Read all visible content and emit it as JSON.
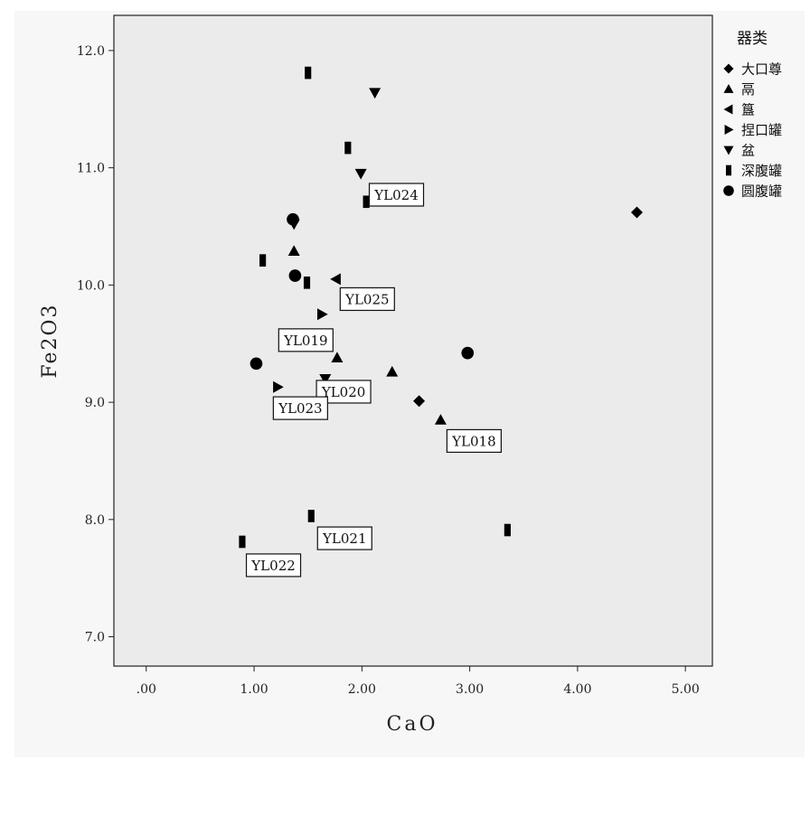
{
  "chart_data": {
    "type": "scatter",
    "xlabel": "CaO",
    "ylabel": "Fe2O3",
    "xlim": [
      -0.3,
      5.25
    ],
    "ylim": [
      6.75,
      12.3
    ],
    "x_ticks": [
      0,
      1,
      2,
      3,
      4,
      5
    ],
    "x_tick_labels": [
      ".00",
      "1.00",
      "2.00",
      "3.00",
      "4.00",
      "5.00"
    ],
    "y_ticks": [
      7,
      8,
      9,
      10,
      11,
      12
    ],
    "y_tick_labels": [
      "7.0",
      "8.0",
      "9.0",
      "10.0",
      "11.0",
      "12.0"
    ],
    "grid": false,
    "legend": {
      "title": "器类",
      "position": "right"
    },
    "series": [
      {
        "name": "大口尊",
        "marker": "diamond",
        "points": [
          [
            4.55,
            10.62
          ],
          [
            2.53,
            9.01
          ]
        ]
      },
      {
        "name": "鬲",
        "marker": "triangle-up",
        "points": [
          [
            1.37,
            10.29
          ],
          [
            1.77,
            9.38
          ],
          [
            2.28,
            9.26
          ],
          [
            2.73,
            8.85
          ]
        ]
      },
      {
        "name": "簋",
        "marker": "triangle-left",
        "points": [
          [
            1.76,
            10.05
          ]
        ]
      },
      {
        "name": "捏口罐",
        "marker": "triangle-right",
        "points": [
          [
            1.63,
            9.75
          ],
          [
            1.22,
            9.13
          ]
        ]
      },
      {
        "name": "盆",
        "marker": "triangle-down",
        "points": [
          [
            2.12,
            11.64
          ],
          [
            1.99,
            10.95
          ],
          [
            1.37,
            10.52
          ],
          [
            1.66,
            9.2
          ]
        ]
      },
      {
        "name": "深腹罐",
        "marker": "square",
        "points": [
          [
            1.5,
            11.81
          ],
          [
            1.87,
            11.17
          ],
          [
            2.04,
            10.71
          ],
          [
            1.08,
            10.21
          ],
          [
            1.49,
            10.02
          ],
          [
            1.53,
            8.03
          ],
          [
            3.35,
            7.91
          ],
          [
            0.89,
            7.81
          ]
        ]
      },
      {
        "name": "圆腹罐",
        "marker": "circle",
        "points": [
          [
            1.36,
            10.56
          ],
          [
            1.38,
            10.08
          ],
          [
            1.02,
            9.33
          ],
          [
            2.98,
            9.42
          ]
        ]
      }
    ],
    "annotations": [
      {
        "text": "YL024",
        "x": 2.32,
        "y": 10.77
      },
      {
        "text": "YL025",
        "x": 2.05,
        "y": 9.88
      },
      {
        "text": "YL019",
        "x": 1.48,
        "y": 9.53
      },
      {
        "text": "YL020",
        "x": 1.83,
        "y": 9.09
      },
      {
        "text": "YL023",
        "x": 1.43,
        "y": 8.95
      },
      {
        "text": "YL018",
        "x": 3.04,
        "y": 8.67
      },
      {
        "text": "YL021",
        "x": 1.84,
        "y": 7.84
      },
      {
        "text": "YL022",
        "x": 1.18,
        "y": 7.61
      }
    ]
  }
}
